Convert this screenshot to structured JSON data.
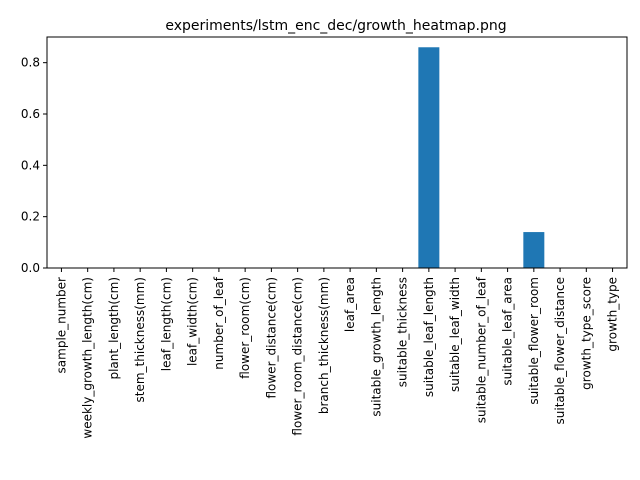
{
  "chart_data": {
    "type": "bar",
    "title": "experiments/lstm_enc_dec/growth_heatmap.png",
    "xlabel": "",
    "ylabel": "",
    "ylim": [
      0,
      0.9
    ],
    "yticks": [
      "0.0",
      "0.2",
      "0.4",
      "0.6",
      "0.8"
    ],
    "ytick_values": [
      0,
      0.2,
      0.4,
      0.6,
      0.8
    ],
    "grid": false,
    "bar_color": "#1f77b4",
    "categories": [
      "sample_number",
      "weekly_growth_length(cm)",
      "plant_length(cm)",
      "stem_thickness(mm)",
      "leaf_length(cm)",
      "leaf_width(cm)",
      "number_of_leaf",
      "flower_room(cm)",
      "flower_distance(cm)",
      "flower_room_distance(cm)",
      "branch_thickness(mm)",
      "leaf_area",
      "suitable_growth_length",
      "suitable_thickness",
      "suitable_leaf_length",
      "suitable_leaf_width",
      "suitable_number_of_leaf",
      "suitable_leaf_area",
      "suitable_flower_room",
      "suitable_flower_distance",
      "growth_type_score",
      "growth_type"
    ],
    "values": [
      0,
      0,
      0,
      0,
      0,
      0,
      0,
      0,
      0,
      0,
      0,
      0,
      0,
      0,
      0.86,
      0,
      0,
      0,
      0.14,
      0,
      0,
      0
    ]
  }
}
